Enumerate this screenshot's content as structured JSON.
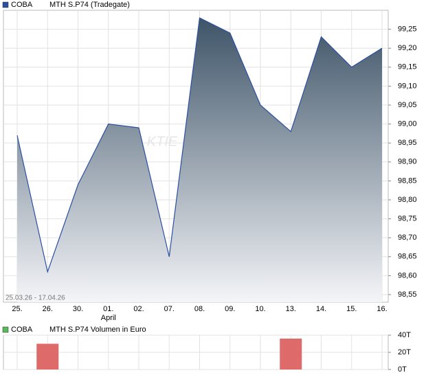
{
  "chart_data": [
    {
      "type": "area",
      "subtitle": "MTH S.P74 (Tradegate)",
      "date_range": "25.03.26 - 17.04.26",
      "watermark": "KTIE",
      "month_label": "April",
      "categories": [
        "25.",
        "26.",
        "30.",
        "01.",
        "02.",
        "07.",
        "08.",
        "09.",
        "10.",
        "13.",
        "14.",
        "15.",
        "16."
      ],
      "series": [
        {
          "name": "COBA",
          "color": "#2a4fa0",
          "values": [
            98.97,
            98.61,
            98.84,
            99.0,
            98.99,
            98.65,
            99.28,
            99.24,
            99.05,
            98.98,
            99.23,
            99.15,
            99.2
          ]
        }
      ],
      "ylim": [
        98.53,
        99.3
      ],
      "yticks": [
        {
          "value": 98.55,
          "label": "98,55"
        },
        {
          "value": 98.6,
          "label": "98,60"
        },
        {
          "value": 98.65,
          "label": "98,65"
        },
        {
          "value": 98.7,
          "label": "98,70"
        },
        {
          "value": 98.75,
          "label": "98,75"
        },
        {
          "value": 98.8,
          "label": "98,80"
        },
        {
          "value": 98.85,
          "label": "98,85"
        },
        {
          "value": 98.9,
          "label": "98,90"
        },
        {
          "value": 98.95,
          "label": "98,95"
        },
        {
          "value": 99.0,
          "label": "99,00"
        },
        {
          "value": 99.05,
          "label": "99,05"
        },
        {
          "value": 99.1,
          "label": "99,10"
        },
        {
          "value": 99.15,
          "label": "99,15"
        },
        {
          "value": 99.2,
          "label": "99,20"
        },
        {
          "value": 99.25,
          "label": "99,25"
        }
      ],
      "grid": true
    },
    {
      "type": "bar",
      "subtitle": "MTH S.P74 Volumen in Euro",
      "series": [
        {
          "name": "COBA",
          "color": "#de6a6a",
          "values": [
            0,
            30,
            0,
            0,
            0,
            0,
            0,
            0,
            0,
            36,
            0,
            0,
            0
          ]
        }
      ],
      "ylim": [
        0,
        40
      ],
      "yticks": [
        {
          "value": 0,
          "label": "0T"
        },
        {
          "value": 20,
          "label": "20T"
        },
        {
          "value": 40,
          "label": "40T"
        }
      ],
      "grid": true
    }
  ]
}
